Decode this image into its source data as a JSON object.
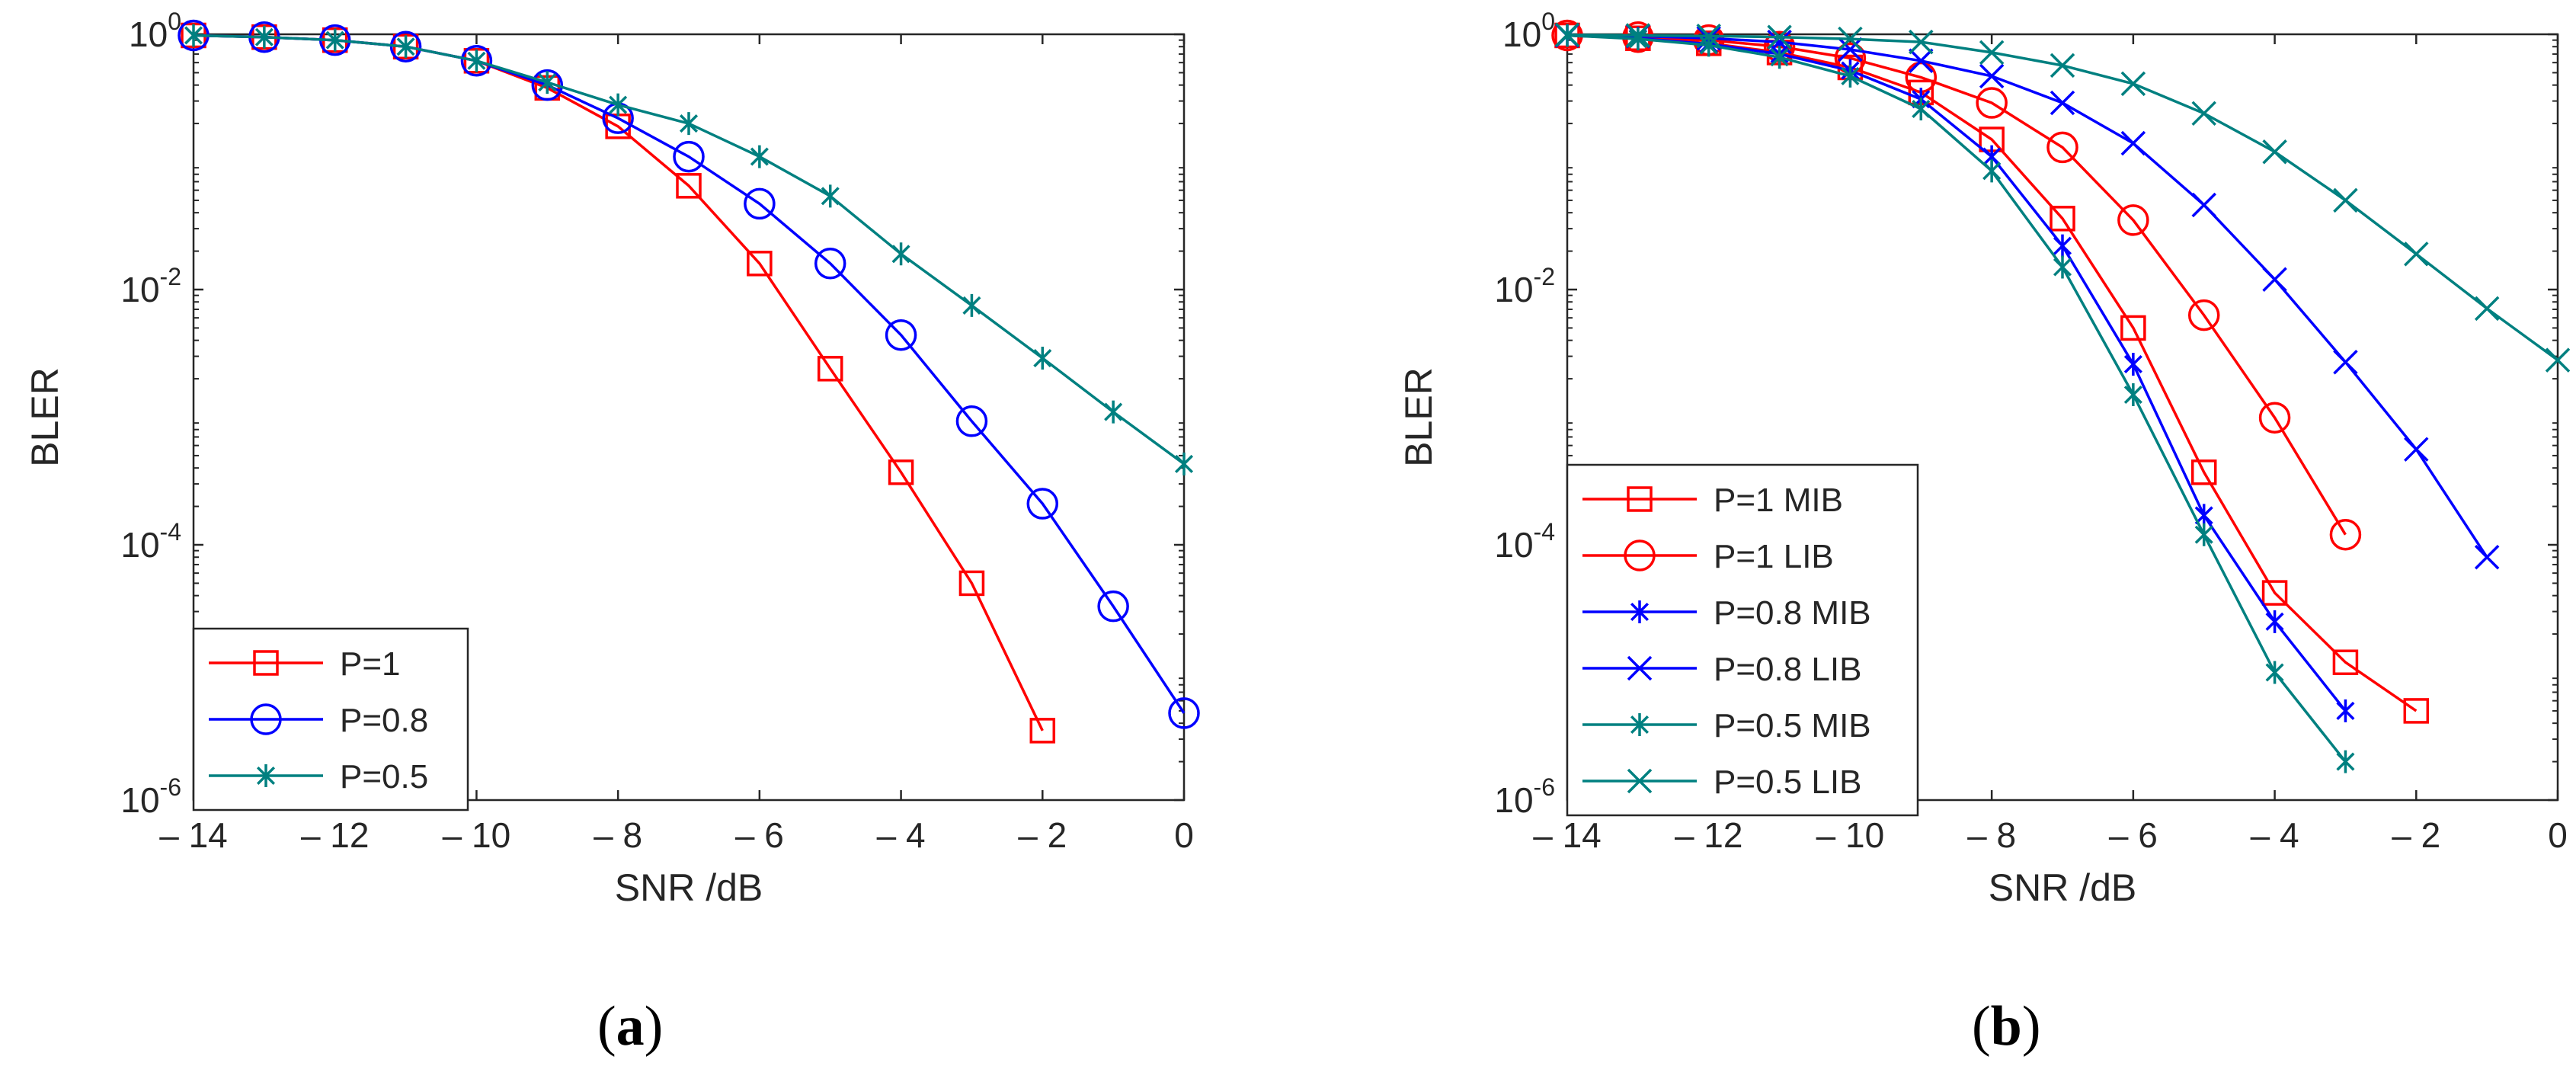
{
  "chart_data": [
    {
      "type": "line",
      "panel_label": "a",
      "xlabel": "SNR /dB",
      "ylabel": "BLER",
      "yscale": "log",
      "xlim": [
        -14,
        0
      ],
      "ylim": [
        1e-06,
        1
      ],
      "xticks": [
        -14,
        -12,
        -10,
        -8,
        -6,
        -4,
        -2,
        0
      ],
      "xtick_labels": [
        "– 14",
        "– 12",
        "– 10",
        "– 8",
        "– 6",
        "– 4",
        "– 2",
        "0"
      ],
      "yticks": [
        {
          "base": "10",
          "exp": "-6",
          "value": 1e-06
        },
        {
          "base": "10",
          "exp": "-4",
          "value": 0.0001
        },
        {
          "base": "10",
          "exp": "-2",
          "value": 0.01
        },
        {
          "base": "10",
          "exp": "0",
          "value": 1
        }
      ],
      "legend_position": "bottom-left",
      "series": [
        {
          "name": "P=1",
          "color": "#ff0000",
          "marker": "square",
          "x": [
            -14,
            -13,
            -12,
            -11,
            -10,
            -9,
            -8,
            -7,
            -6,
            -5,
            -4,
            -3,
            -2
          ],
          "y": [
            0.98,
            0.95,
            0.9,
            0.8,
            0.62,
            0.38,
            0.19,
            0.065,
            0.016,
            0.0024,
            0.00037,
            5e-05,
            3.5e-06
          ]
        },
        {
          "name": "P=0.8",
          "color": "#0000ff",
          "marker": "circle",
          "x": [
            -14,
            -13,
            -12,
            -11,
            -10,
            -9,
            -8,
            -7,
            -6,
            -5,
            -4,
            -3,
            -2,
            -1,
            0
          ],
          "y": [
            0.98,
            0.95,
            0.9,
            0.8,
            0.62,
            0.4,
            0.22,
            0.11,
            0.047,
            0.016,
            0.0044,
            0.00093,
            0.00021,
            3.3e-05,
            4.8e-06
          ]
        },
        {
          "name": "P=0.5",
          "color": "#008080",
          "marker": "asterisk",
          "x": [
            -14,
            -13,
            -12,
            -11,
            -10,
            -9,
            -8,
            -7,
            -6,
            -5,
            -4,
            -3,
            -2,
            -1,
            0
          ],
          "y": [
            0.98,
            0.95,
            0.9,
            0.8,
            0.62,
            0.42,
            0.28,
            0.2,
            0.11,
            0.054,
            0.019,
            0.0075,
            0.0029,
            0.0011,
            0.00043
          ]
        }
      ]
    },
    {
      "type": "line",
      "panel_label": "b",
      "xlabel": "SNR /dB",
      "ylabel": "BLER",
      "yscale": "log",
      "xlim": [
        -14,
        0
      ],
      "ylim": [
        1e-06,
        1
      ],
      "xticks": [
        -14,
        -12,
        -10,
        -8,
        -6,
        -4,
        -2,
        0
      ],
      "xtick_labels": [
        "– 14",
        "– 12",
        "– 10",
        "– 8",
        "– 6",
        "– 4",
        "– 2",
        "0"
      ],
      "yticks": [
        {
          "base": "10",
          "exp": "-6",
          "value": 1e-06
        },
        {
          "base": "10",
          "exp": "-4",
          "value": 0.0001
        },
        {
          "base": "10",
          "exp": "-2",
          "value": 0.01
        },
        {
          "base": "10",
          "exp": "0",
          "value": 1
        }
      ],
      "legend_position": "bottom-left",
      "series": [
        {
          "name": "P=1 MIB",
          "color": "#ff0000",
          "marker": "square",
          "x": [
            -14,
            -13,
            -12,
            -11,
            -10,
            -9,
            -8,
            -7,
            -6,
            -5,
            -4,
            -3,
            -2
          ],
          "y": [
            0.98,
            0.93,
            0.85,
            0.72,
            0.55,
            0.35,
            0.15,
            0.036,
            0.005,
            0.00037,
            4.2e-05,
            1.2e-05,
            5e-06
          ]
        },
        {
          "name": "P=1 LIB",
          "color": "#ff0000",
          "marker": "circle",
          "x": [
            -14,
            -13,
            -12,
            -11,
            -10,
            -9,
            -8,
            -7,
            -6,
            -5,
            -4,
            -3
          ],
          "y": [
            0.98,
            0.95,
            0.9,
            0.8,
            0.65,
            0.46,
            0.29,
            0.13,
            0.035,
            0.0063,
            0.00099,
            0.00012
          ]
        },
        {
          "name": "P=0.8 MIB",
          "color": "#0000ff",
          "marker": "asterisk",
          "x": [
            -14,
            -13,
            -12,
            -11,
            -10,
            -9,
            -8,
            -7,
            -6,
            -5,
            -4,
            -3
          ],
          "y": [
            0.98,
            0.93,
            0.84,
            0.7,
            0.52,
            0.31,
            0.11,
            0.022,
            0.0026,
            0.00017,
            2.5e-05,
            5e-06
          ]
        },
        {
          "name": "P=0.8 LIB",
          "color": "#0000ff",
          "marker": "x",
          "x": [
            -14,
            -13,
            -12,
            -11,
            -10,
            -9,
            -8,
            -7,
            -6,
            -5,
            -4,
            -3,
            -2,
            -1
          ],
          "y": [
            0.98,
            0.97,
            0.93,
            0.87,
            0.76,
            0.62,
            0.47,
            0.29,
            0.14,
            0.046,
            0.012,
            0.0027,
            0.00056,
            8e-05
          ]
        },
        {
          "name": "P=0.5 MIB",
          "color": "#008080",
          "marker": "asterisk",
          "x": [
            -14,
            -13,
            -12,
            -11,
            -10,
            -9,
            -8,
            -7,
            -6,
            -5,
            -4,
            -3
          ],
          "y": [
            0.98,
            0.92,
            0.82,
            0.66,
            0.47,
            0.26,
            0.085,
            0.015,
            0.0015,
            0.00012,
            1e-05,
            2e-06
          ]
        },
        {
          "name": "P=0.5 LIB",
          "color": "#008080",
          "marker": "x",
          "x": [
            -14,
            -13,
            -12,
            -11,
            -10,
            -9,
            -8,
            -7,
            -6,
            -5,
            -4,
            -3,
            -2,
            -1,
            0
          ],
          "y": [
            0.99,
            0.98,
            0.97,
            0.95,
            0.92,
            0.87,
            0.72,
            0.57,
            0.41,
            0.24,
            0.12,
            0.05,
            0.019,
            0.0071,
            0.0028
          ]
        }
      ]
    }
  ]
}
